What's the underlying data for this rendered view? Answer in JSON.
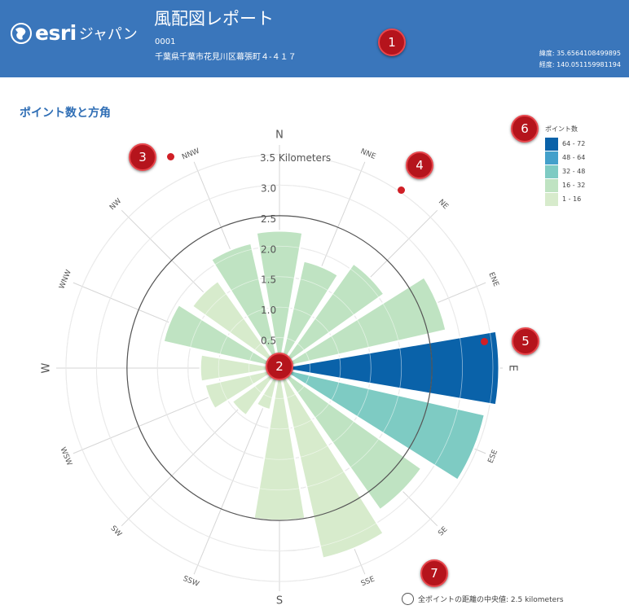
{
  "header": {
    "logo_text": "esri",
    "logo_sub": "ジャパン",
    "title": "風配図レポート",
    "site_id": "0001",
    "address": "千葉県千葉市花見川区幕張町４-４１７",
    "latitude_label": "緯度: 35.6564108499895",
    "longitude_label": "経度: 140.051159981194",
    "bg_color": "#3a76bb"
  },
  "section_title": "ポイント数と方角",
  "legend": {
    "title": "ポイント数",
    "items": [
      {
        "label": "64 - 72",
        "color": "#0a62a9"
      },
      {
        "label": "48 - 64",
        "color": "#43a0cb"
      },
      {
        "label": "32 - 48",
        "color": "#7ecbc3"
      },
      {
        "label": "16 - 32",
        "color": "#bfe3c2"
      },
      {
        "label": "1 - 16",
        "color": "#d7ebcc"
      }
    ]
  },
  "median_note": "全ポイントの距離の中央値: 2.5 kilometers",
  "markers": [
    "1",
    "2",
    "3",
    "4",
    "5",
    "6",
    "7"
  ],
  "chart_data": {
    "type": "polar-bar",
    "radial_unit": "Kilometers",
    "rlim": [
      0,
      3.5
    ],
    "radial_ticks": [
      {
        "value": 0.5,
        "label": "0.5"
      },
      {
        "value": 1.0,
        "label": "1.0"
      },
      {
        "value": 1.5,
        "label": "1.5"
      },
      {
        "value": 2.0,
        "label": "2.0"
      },
      {
        "value": 2.5,
        "label": "2.5"
      },
      {
        "value": 3.0,
        "label": "3.0"
      },
      {
        "value": 3.5,
        "label": "3.5 Kilometers"
      }
    ],
    "median_km": 2.5,
    "directions": [
      {
        "label": "N",
        "radius_km": 2.25,
        "class": "16 - 32"
      },
      {
        "label": "NNE",
        "radius_km": 1.8,
        "class": "16 - 32"
      },
      {
        "label": "NE",
        "radius_km": 2.1,
        "class": "16 - 32"
      },
      {
        "label": "ENE",
        "radius_km": 2.8,
        "class": "16 - 32"
      },
      {
        "label": "E",
        "radius_km": 3.6,
        "class": "64 - 72"
      },
      {
        "label": "ESE",
        "radius_km": 3.45,
        "class": "32 - 48"
      },
      {
        "label": "SE",
        "radius_km": 2.85,
        "class": "16 - 32"
      },
      {
        "label": "SSE",
        "radius_km": 3.2,
        "class": "1 - 16"
      },
      {
        "label": "S",
        "radius_km": 2.5,
        "class": "1 - 16"
      },
      {
        "label": "SSW",
        "radius_km": 0.7,
        "class": "1 - 16"
      },
      {
        "label": "SW",
        "radius_km": 0.95,
        "class": "1 - 16"
      },
      {
        "label": "WSW",
        "radius_km": 1.25,
        "class": "1 - 16"
      },
      {
        "label": "W",
        "radius_km": 1.3,
        "class": "1 - 16"
      },
      {
        "label": "WNW",
        "radius_km": 1.95,
        "class": "16 - 32"
      },
      {
        "label": "NW",
        "radius_km": 1.75,
        "class": "1 - 16"
      },
      {
        "label": "NNW",
        "radius_km": 2.1,
        "class": "16 - 32"
      }
    ]
  }
}
